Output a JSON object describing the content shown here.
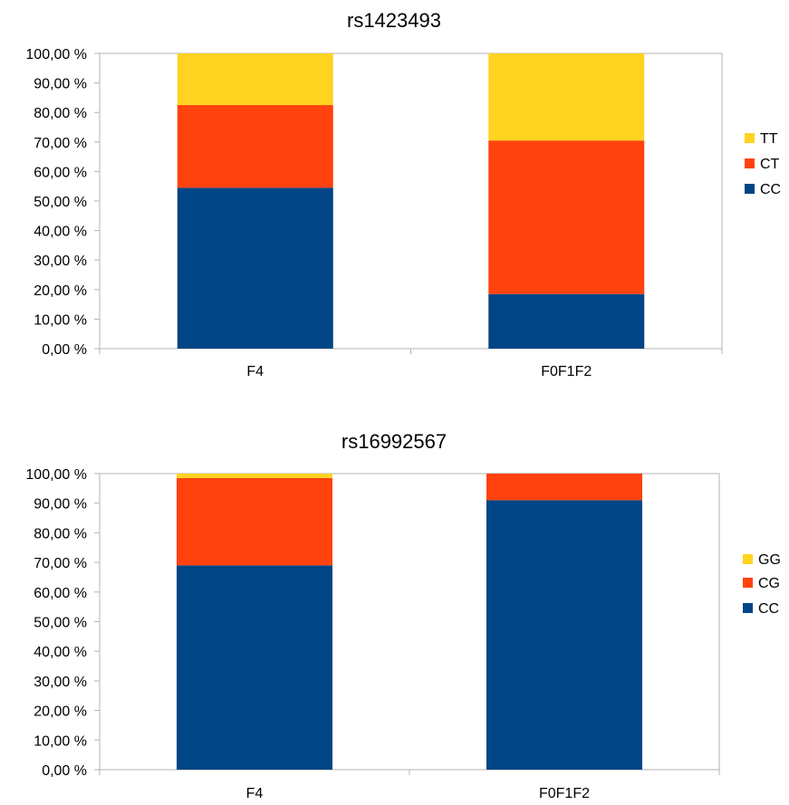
{
  "chart_data": [
    {
      "type": "bar",
      "stacked": true,
      "percent": true,
      "title": "rs1423493",
      "categories": [
        "F4",
        "F0F1F2"
      ],
      "series": [
        {
          "name": "CC",
          "values": [
            54.5,
            18.5
          ],
          "color": "#004586"
        },
        {
          "name": "CT",
          "values": [
            28.0,
            52.0
          ],
          "color": "#ff420e"
        },
        {
          "name": "TT",
          "values": [
            17.5,
            29.5
          ],
          "color": "#ffd320"
        }
      ],
      "ylim": [
        0,
        100
      ],
      "yticks": [
        "0,00 %",
        "10,00 %",
        "20,00 %",
        "30,00 %",
        "40,00 %",
        "50,00 %",
        "60,00 %",
        "70,00 %",
        "80,00 %",
        "90,00 %",
        "100,00 %"
      ],
      "grid": false,
      "legend_position": "right"
    },
    {
      "type": "bar",
      "stacked": true,
      "percent": true,
      "title": "rs16992567",
      "categories": [
        "F4",
        "F0F1F2"
      ],
      "series": [
        {
          "name": "CC",
          "values": [
            69.0,
            91.0
          ],
          "color": "#004586"
        },
        {
          "name": "CG",
          "values": [
            29.5,
            9.0
          ],
          "color": "#ff420e"
        },
        {
          "name": "GG",
          "values": [
            1.5,
            0.0
          ],
          "color": "#ffd320"
        }
      ],
      "ylim": [
        0,
        100
      ],
      "yticks": [
        "0,00 %",
        "10,00 %",
        "20,00 %",
        "30,00 %",
        "40,00 %",
        "50,00 %",
        "60,00 %",
        "70,00 %",
        "80,00 %",
        "90,00 %",
        "100,00 %"
      ],
      "grid": false,
      "legend_position": "right"
    }
  ]
}
